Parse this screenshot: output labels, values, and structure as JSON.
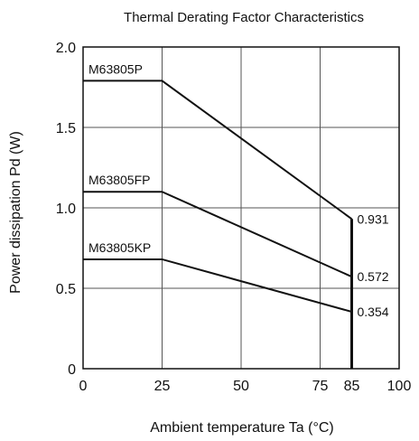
{
  "chart_data": {
    "type": "line",
    "title": "Thermal Derating Factor Characteristics",
    "xlabel": "Ambient temperature  Ta (°C)",
    "ylabel": "Power dissipation  Pd (W)",
    "xlim": [
      0,
      100
    ],
    "ylim": [
      0,
      2.0
    ],
    "x_ticks": [
      "0",
      "25",
      "50",
      "75",
      "85",
      "100"
    ],
    "x_tick_values": [
      0,
      25,
      50,
      75,
      85,
      100
    ],
    "y_ticks": [
      "0",
      "0.5",
      "1.0",
      "1.5",
      "2.0"
    ],
    "y_tick_values": [
      0,
      0.5,
      1.0,
      1.5,
      2.0
    ],
    "grid": true,
    "series": [
      {
        "name": "M63805P",
        "x": [
          0,
          25,
          85
        ],
        "y": [
          1.79,
          1.79,
          0.931
        ],
        "end_label": "0.931"
      },
      {
        "name": "M63805FP",
        "x": [
          0,
          25,
          85
        ],
        "y": [
          1.1,
          1.1,
          0.572
        ],
        "end_label": "0.572"
      },
      {
        "name": "M63805KP",
        "x": [
          0,
          25,
          85
        ],
        "y": [
          0.68,
          0.68,
          0.354
        ],
        "end_label": "0.354"
      }
    ],
    "cutoff": {
      "x": 85,
      "y_top": 0.931
    }
  }
}
